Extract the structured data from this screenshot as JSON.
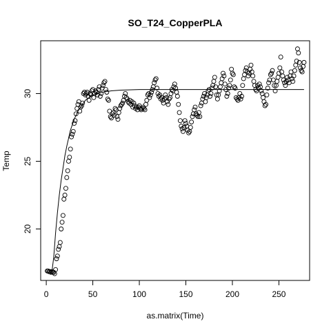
{
  "chart_data": {
    "type": "scatter",
    "title": "SO_T24_CopperPLA",
    "xlabel": "as.matrix(Time)",
    "ylabel": "Temp",
    "xlim": [
      -6,
      283
    ],
    "ylim": [
      16.2,
      33.9
    ],
    "x_ticks": [
      0,
      50,
      100,
      150,
      200,
      250
    ],
    "y_ticks": [
      20,
      25,
      30
    ],
    "x_tick_labels": [
      "0",
      "50",
      "100",
      "150",
      "200",
      "250"
    ],
    "y_tick_labels": [
      "20",
      "25",
      "30"
    ],
    "grid": false,
    "legend": "none",
    "series": [
      {
        "kind": "points",
        "marker": "open-circle",
        "color": "#000000",
        "points": [
          [
            1,
            16.9
          ],
          [
            2,
            16.9
          ],
          [
            3,
            16.85
          ],
          [
            4,
            16.85
          ],
          [
            5,
            16.8
          ],
          [
            6,
            16.85
          ],
          [
            7,
            16.8
          ],
          [
            8,
            16.8
          ],
          [
            9,
            16.7
          ],
          [
            10,
            17.0
          ],
          [
            11,
            17.8
          ],
          [
            12,
            18.0
          ],
          [
            13,
            18.5
          ],
          [
            14,
            18.7
          ],
          [
            15,
            19.0
          ],
          [
            16,
            20.0
          ],
          [
            17,
            20.5
          ],
          [
            18,
            21.0
          ],
          [
            19,
            22.2
          ],
          [
            20,
            22.5
          ],
          [
            21,
            23.0
          ],
          [
            22,
            23.8
          ],
          [
            23,
            24.3
          ],
          [
            24,
            25.0
          ],
          [
            25,
            25.3
          ],
          [
            26,
            25.9
          ],
          [
            27,
            26.8
          ],
          [
            28,
            27.0
          ],
          [
            29,
            27.2
          ],
          [
            30,
            27.8
          ],
          [
            31,
            28.0
          ],
          [
            32,
            28.5
          ],
          [
            33,
            28.9
          ],
          [
            34,
            29.2
          ],
          [
            35,
            29.4
          ],
          [
            36,
            28.7
          ],
          [
            37,
            29.0
          ],
          [
            38,
            29.1
          ],
          [
            39,
            29.3
          ],
          [
            40,
            30.0
          ],
          [
            41,
            30.1
          ],
          [
            42,
            29.9
          ],
          [
            43,
            30.0
          ],
          [
            44,
            30.1
          ],
          [
            45,
            29.8
          ],
          [
            46,
            29.5
          ],
          [
            47,
            30.0
          ],
          [
            48,
            29.9
          ],
          [
            49,
            30.2
          ],
          [
            50,
            30.3
          ],
          [
            51,
            29.7
          ],
          [
            52,
            30.0
          ],
          [
            53,
            30.2
          ],
          [
            54,
            30.1
          ],
          [
            55,
            29.9
          ],
          [
            56,
            30.3
          ],
          [
            57,
            30.5
          ],
          [
            58,
            29.8
          ],
          [
            59,
            30.0
          ],
          [
            60,
            30.4
          ],
          [
            61,
            30.6
          ],
          [
            62,
            30.8
          ],
          [
            63,
            30.9
          ],
          [
            64,
            30.3
          ],
          [
            65,
            30.1
          ],
          [
            66,
            29.6
          ],
          [
            67,
            29.5
          ],
          [
            68,
            28.7
          ],
          [
            69,
            28.3
          ],
          [
            70,
            28.2
          ],
          [
            71,
            28.5
          ],
          [
            72,
            28.6
          ],
          [
            73,
            28.4
          ],
          [
            74,
            28.9
          ],
          [
            75,
            28.8
          ],
          [
            76,
            28.3
          ],
          [
            77,
            28.1
          ],
          [
            78,
            28.6
          ],
          [
            79,
            28.9
          ],
          [
            80,
            29.1
          ],
          [
            81,
            29.2
          ],
          [
            82,
            29.3
          ],
          [
            83,
            29.5
          ],
          [
            84,
            29.8
          ],
          [
            85,
            30.0
          ],
          [
            86,
            29.7
          ],
          [
            87,
            29.6
          ],
          [
            88,
            29.4
          ],
          [
            89,
            29.3
          ],
          [
            90,
            29.5
          ],
          [
            91,
            29.2
          ],
          [
            92,
            29.4
          ],
          [
            93,
            29.0
          ],
          [
            94,
            29.3
          ],
          [
            95,
            29.1
          ],
          [
            96,
            28.9
          ],
          [
            97,
            29.0
          ],
          [
            98,
            28.8
          ],
          [
            99,
            29.0
          ],
          [
            100,
            29.1
          ],
          [
            101,
            28.9
          ],
          [
            102,
            28.8
          ],
          [
            103,
            28.9
          ],
          [
            104,
            29.0
          ],
          [
            105,
            28.9
          ],
          [
            106,
            28.8
          ],
          [
            107,
            29.2
          ],
          [
            108,
            29.5
          ],
          [
            109,
            29.9
          ],
          [
            110,
            30.0
          ],
          [
            111,
            29.7
          ],
          [
            112,
            29.9
          ],
          [
            113,
            30.1
          ],
          [
            114,
            30.3
          ],
          [
            115,
            30.5
          ],
          [
            116,
            30.8
          ],
          [
            117,
            31.0
          ],
          [
            118,
            31.1
          ],
          [
            119,
            30.4
          ],
          [
            120,
            30.0
          ],
          [
            121,
            29.8
          ],
          [
            122,
            29.9
          ],
          [
            123,
            29.6
          ],
          [
            124,
            29.7
          ],
          [
            125,
            29.5
          ],
          [
            126,
            29.3
          ],
          [
            127,
            29.6
          ],
          [
            128,
            29.9
          ],
          [
            129,
            29.7
          ],
          [
            130,
            29.4
          ],
          [
            131,
            29.2
          ],
          [
            132,
            29.6
          ],
          [
            133,
            29.7
          ],
          [
            134,
            30.0
          ],
          [
            135,
            30.3
          ],
          [
            136,
            30.2
          ],
          [
            137,
            30.5
          ],
          [
            138,
            30.7
          ],
          [
            139,
            30.4
          ],
          [
            140,
            30.1
          ],
          [
            141,
            29.8
          ],
          [
            142,
            29.2
          ],
          [
            143,
            28.6
          ],
          [
            144,
            28.0
          ],
          [
            145,
            27.6
          ],
          [
            146,
            27.4
          ],
          [
            147,
            27.2
          ],
          [
            148,
            27.5
          ],
          [
            149,
            28.0
          ],
          [
            150,
            27.8
          ],
          [
            151,
            27.6
          ],
          [
            152,
            27.3
          ],
          [
            153,
            27.1
          ],
          [
            154,
            27.2
          ],
          [
            155,
            27.5
          ],
          [
            156,
            27.9
          ],
          [
            157,
            28.3
          ],
          [
            158,
            28.5
          ],
          [
            159,
            28.8
          ],
          [
            160,
            29.0
          ],
          [
            161,
            28.5
          ],
          [
            162,
            28.4
          ],
          [
            163,
            28.3
          ],
          [
            164,
            28.6
          ],
          [
            165,
            28.3
          ],
          [
            166,
            29.1
          ],
          [
            167,
            29.3
          ],
          [
            168,
            29.6
          ],
          [
            169,
            29.8
          ],
          [
            170,
            30.0
          ],
          [
            171,
            29.4
          ],
          [
            172,
            29.7
          ],
          [
            173,
            29.9
          ],
          [
            174,
            30.2
          ],
          [
            175,
            30.3
          ],
          [
            176,
            29.8
          ],
          [
            177,
            30.0
          ],
          [
            178,
            30.4
          ],
          [
            179,
            30.6
          ],
          [
            180,
            30.9
          ],
          [
            181,
            31.2
          ],
          [
            182,
            30.5
          ],
          [
            183,
            29.9
          ],
          [
            184,
            29.6
          ],
          [
            185,
            29.9
          ],
          [
            186,
            30.2
          ],
          [
            187,
            30.5
          ],
          [
            188,
            30.8
          ],
          [
            189,
            31.1
          ],
          [
            190,
            31.5
          ],
          [
            191,
            31.3
          ],
          [
            192,
            30.7
          ],
          [
            193,
            30.3
          ],
          [
            194,
            29.8
          ],
          [
            195,
            30.0
          ],
          [
            196,
            30.4
          ],
          [
            197,
            30.6
          ],
          [
            198,
            31.0
          ],
          [
            199,
            31.8
          ],
          [
            200,
            31.5
          ],
          [
            201,
            31.4
          ],
          [
            202,
            30.5
          ],
          [
            203,
            30.4
          ],
          [
            204,
            29.7
          ],
          [
            205,
            29.6
          ],
          [
            206,
            29.5
          ],
          [
            207,
            29.7
          ],
          [
            208,
            30.0
          ],
          [
            209,
            29.6
          ],
          [
            210,
            29.8
          ],
          [
            211,
            30.6
          ],
          [
            212,
            31.1
          ],
          [
            213,
            31.4
          ],
          [
            214,
            31.7
          ],
          [
            215,
            31.9
          ],
          [
            216,
            31.6
          ],
          [
            217,
            31.3
          ],
          [
            218,
            31.5
          ],
          [
            219,
            31.8
          ],
          [
            220,
            32.1
          ],
          [
            221,
            31.6
          ],
          [
            222,
            31.3
          ],
          [
            223,
            30.9
          ],
          [
            224,
            30.6
          ],
          [
            225,
            30.3
          ],
          [
            226,
            30.2
          ],
          [
            227,
            30.6
          ],
          [
            228,
            30.4
          ],
          [
            229,
            30.7
          ],
          [
            230,
            30.5
          ],
          [
            231,
            30.2
          ],
          [
            232,
            30.0
          ],
          [
            233,
            29.7
          ],
          [
            234,
            29.4
          ],
          [
            235,
            29.1
          ],
          [
            236,
            29.2
          ],
          [
            237,
            29.9
          ],
          [
            238,
            30.4
          ],
          [
            239,
            30.8
          ],
          [
            240,
            31.0
          ],
          [
            241,
            31.4
          ],
          [
            242,
            31.5
          ],
          [
            243,
            31.7
          ],
          [
            244,
            31.0
          ],
          [
            245,
            30.6
          ],
          [
            246,
            30.2
          ],
          [
            247,
            30.6
          ],
          [
            248,
            30.9
          ],
          [
            249,
            31.2
          ],
          [
            250,
            31.5
          ],
          [
            251,
            31.9
          ],
          [
            252,
            32.7
          ],
          [
            253,
            31.6
          ],
          [
            254,
            31.3
          ],
          [
            255,
            31.0
          ],
          [
            256,
            30.8
          ],
          [
            257,
            30.6
          ],
          [
            258,
            30.9
          ],
          [
            259,
            31.2
          ],
          [
            260,
            31.0
          ],
          [
            261,
            30.8
          ],
          [
            262,
            31.3
          ],
          [
            263,
            31.6
          ],
          [
            264,
            31.1
          ],
          [
            265,
            30.9
          ],
          [
            266,
            31.3
          ],
          [
            267,
            31.7
          ],
          [
            268,
            32.1
          ],
          [
            269,
            32.4
          ],
          [
            270,
            33.3
          ],
          [
            271,
            33.0
          ],
          [
            272,
            32.3
          ],
          [
            273,
            31.9
          ],
          [
            274,
            31.7
          ],
          [
            275,
            31.6
          ],
          [
            276,
            32.0
          ],
          [
            277,
            32.3
          ]
        ]
      },
      {
        "kind": "fitted-curve",
        "color": "#000000",
        "points": [
          [
            4.5,
            16.8
          ],
          [
            6,
            16.8
          ],
          [
            8,
            17.9
          ],
          [
            10,
            19.7
          ],
          [
            12,
            21.2
          ],
          [
            14,
            22.5
          ],
          [
            16,
            23.6
          ],
          [
            18,
            24.5
          ],
          [
            20,
            25.4
          ],
          [
            22,
            26.1
          ],
          [
            24,
            26.7
          ],
          [
            26,
            27.3
          ],
          [
            28,
            27.7
          ],
          [
            30,
            28.1
          ],
          [
            32,
            28.4
          ],
          [
            34,
            28.7
          ],
          [
            36,
            28.9
          ],
          [
            38,
            29.1
          ],
          [
            40,
            29.3
          ],
          [
            42,
            29.5
          ],
          [
            44,
            29.6
          ],
          [
            46,
            29.7
          ],
          [
            48,
            29.8
          ],
          [
            50,
            29.9
          ],
          [
            55,
            30.0
          ],
          [
            60,
            30.1
          ],
          [
            70,
            30.2
          ],
          [
            80,
            30.25
          ],
          [
            100,
            30.3
          ],
          [
            150,
            30.3
          ],
          [
            200,
            30.3
          ],
          [
            277,
            30.3
          ]
        ]
      }
    ]
  }
}
